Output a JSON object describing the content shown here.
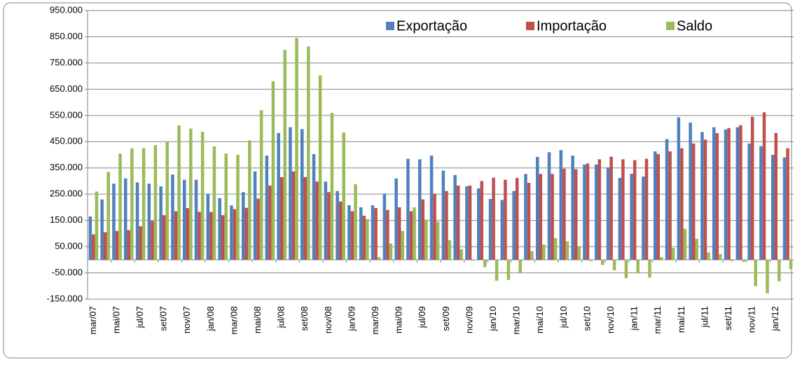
{
  "chart_data": {
    "type": "bar",
    "categories": [
      "mar/07",
      null,
      "mai/07",
      null,
      "jul/07",
      null,
      "set/07",
      null,
      "nov/07",
      null,
      "jan/08",
      null,
      "mar/08",
      null,
      "mai/08",
      null,
      "jul/08",
      null,
      "set/08",
      null,
      "nov/08",
      null,
      "jan/09",
      null,
      "mar/09",
      null,
      "mai/09",
      null,
      "jul/09",
      null,
      "set/09",
      null,
      "nov/09",
      null,
      "jan/10",
      null,
      "mar/10",
      null,
      "mai/10",
      null,
      "jul/10",
      null,
      "set/10",
      null,
      "nov/10",
      null,
      "jan/11",
      null,
      "mar/11",
      null,
      "mai/11",
      null,
      "jul/11",
      null,
      "set/11",
      null,
      "nov/11",
      null,
      "jan/12",
      null
    ],
    "series": [
      {
        "name": "Exportação",
        "color": "#4f81bd",
        "values": [
          165000,
          230000,
          290000,
          310000,
          295000,
          290000,
          280000,
          325000,
          305000,
          305000,
          250000,
          235000,
          207000,
          258000,
          337000,
          397000,
          483000,
          505000,
          498000,
          403000,
          298000,
          262000,
          208000,
          200000,
          208000,
          252000,
          310000,
          385000,
          383000,
          397000,
          340000,
          323000,
          280000,
          272000,
          232000,
          228000,
          262000,
          327000,
          392000,
          410000,
          418000,
          397000,
          363000,
          363000,
          352000,
          312000,
          328000,
          317000,
          413000,
          460000,
          543000,
          523000,
          487000,
          505000,
          497000,
          505000,
          443000,
          433000,
          400000,
          390000
        ]
      },
      {
        "name": "Importação",
        "color": "#c0504d",
        "values": [
          97000,
          105000,
          110000,
          113000,
          128000,
          148000,
          170000,
          185000,
          197000,
          183000,
          182000,
          170000,
          193000,
          198000,
          233000,
          283000,
          315000,
          337000,
          315000,
          298000,
          258000,
          222000,
          185000,
          168000,
          197000,
          190000,
          200000,
          185000,
          230000,
          252000,
          262000,
          283000,
          283000,
          300000,
          313000,
          305000,
          312000,
          293000,
          327000,
          327000,
          347000,
          345000,
          367000,
          383000,
          393000,
          383000,
          380000,
          385000,
          403000,
          413000,
          425000,
          443000,
          458000,
          483000,
          502000,
          513000,
          545000,
          562000,
          483000,
          425000
        ]
      },
      {
        "name": "Saldo",
        "color": "#9bbb59",
        "values": [
          260000,
          335000,
          405000,
          425000,
          425000,
          437000,
          450000,
          512000,
          500000,
          488000,
          432000,
          405000,
          400000,
          455000,
          570000,
          680000,
          800000,
          845000,
          813000,
          703000,
          560000,
          485000,
          288000,
          155000,
          10000,
          62000,
          110000,
          200000,
          153000,
          145000,
          75000,
          40000,
          -3000,
          -28000,
          -80000,
          -77000,
          -50000,
          33000,
          58000,
          83000,
          70000,
          52000,
          -5000,
          -20000,
          -40000,
          -70000,
          -52000,
          -68000,
          10000,
          45000,
          118000,
          80000,
          28000,
          22000,
          -5000,
          -8000,
          -100000,
          -128000,
          -82000,
          -35000
        ]
      }
    ],
    "ylim": [
      -150000,
      950000
    ],
    "yticks": [
      {
        "value": -150000,
        "label": "-150.000"
      },
      {
        "value": -50000,
        "label": "-50.000"
      },
      {
        "value": 50000,
        "label": "50.000"
      },
      {
        "value": 150000,
        "label": "150.000"
      },
      {
        "value": 250000,
        "label": "250.000"
      },
      {
        "value": 350000,
        "label": "350.000"
      },
      {
        "value": 450000,
        "label": "450.000"
      },
      {
        "value": 550000,
        "label": "550.000"
      },
      {
        "value": 650000,
        "label": "650.000"
      },
      {
        "value": 750000,
        "label": "750.000"
      },
      {
        "value": 850000,
        "label": "850.000"
      },
      {
        "value": 950000,
        "label": "950.000"
      }
    ],
    "grid": true,
    "legend": "top"
  }
}
